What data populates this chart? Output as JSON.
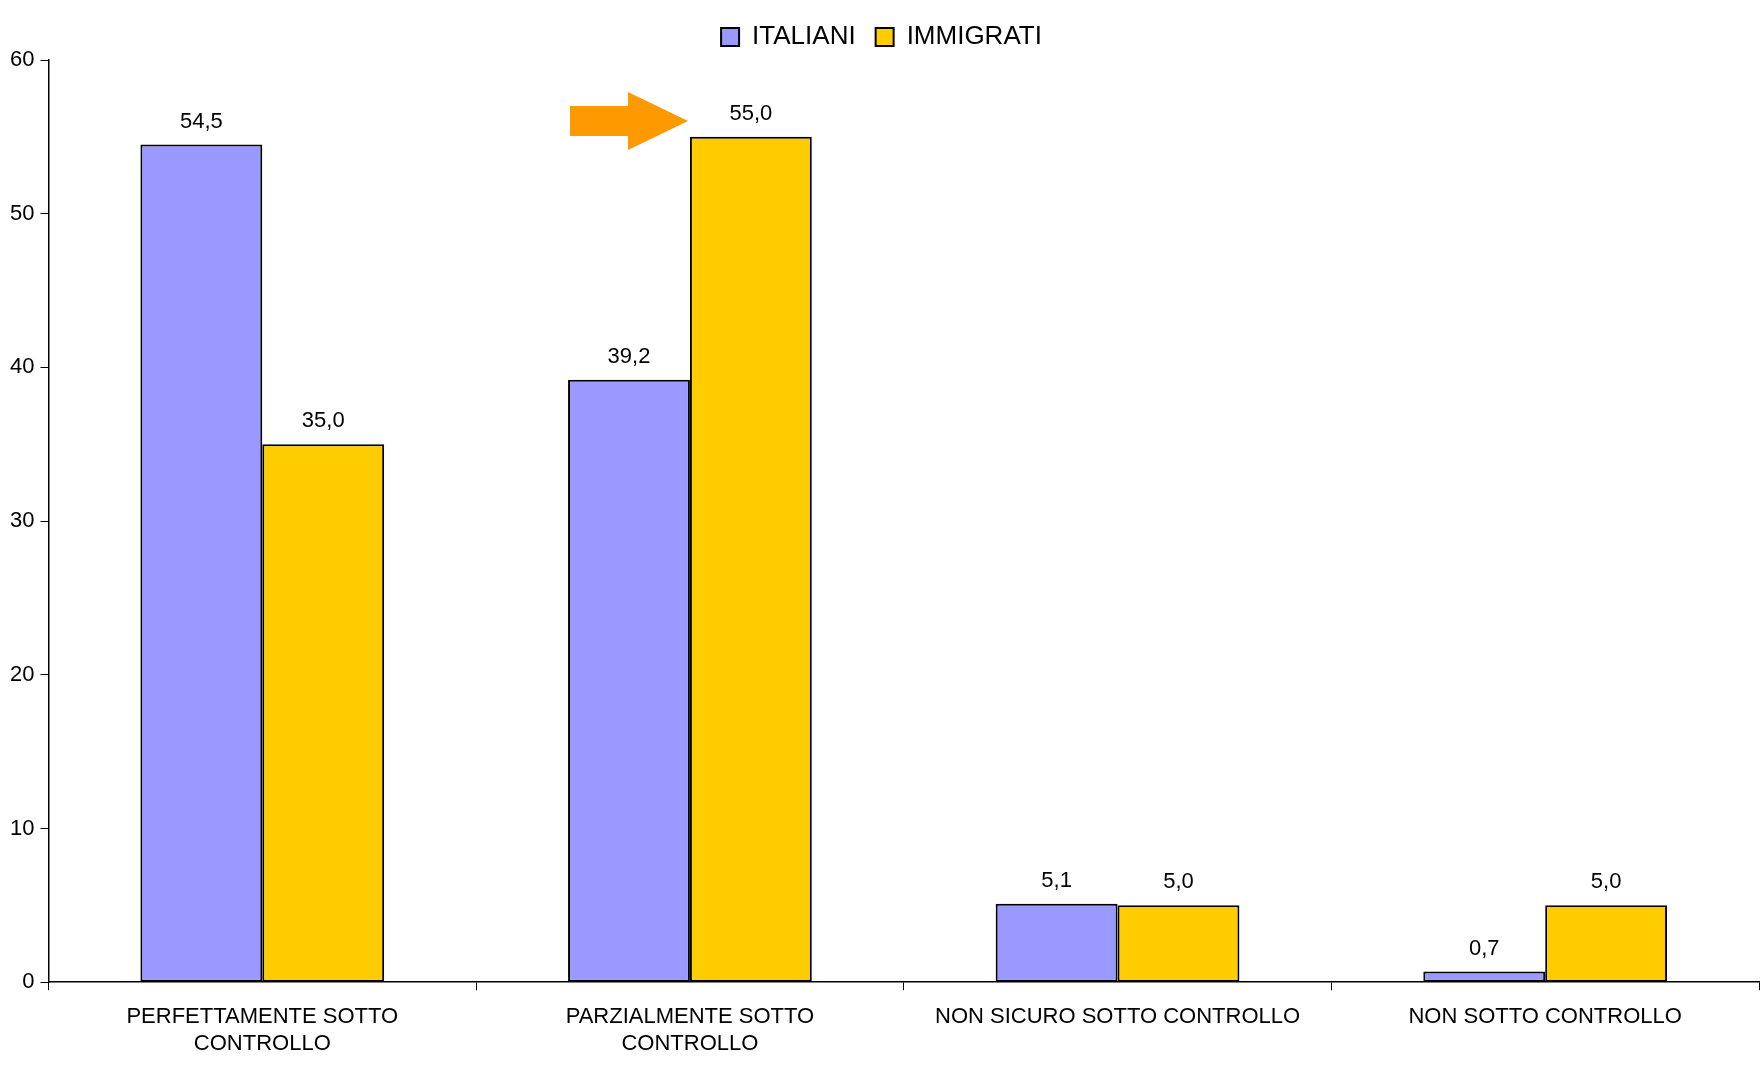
{
  "chart_data": {
    "type": "bar",
    "categories": [
      "PERFETTAMENTE SOTTO CONTROLLO",
      "PARZIALMENTE SOTTO CONTROLLO",
      "NON SICURO SOTTO CONTROLLO",
      "NON SOTTO CONTROLLO"
    ],
    "series": [
      {
        "name": "ITALIANI",
        "color": "#9999ff",
        "values": [
          54.5,
          39.2,
          5.1,
          0.7
        ],
        "value_labels": [
          "54,5",
          "39,2",
          "5,1",
          "0,7"
        ]
      },
      {
        "name": "IMMIGRATI",
        "color": "#ffcc00",
        "values": [
          35.0,
          55.0,
          5.0,
          5.0
        ],
        "value_labels": [
          "35,0",
          "55,0",
          "5,0",
          "5,0"
        ]
      }
    ],
    "ylim": [
      0,
      60
    ],
    "yticks": [
      0,
      10,
      20,
      30,
      40,
      50,
      60
    ],
    "grid": false,
    "legend": "top"
  }
}
